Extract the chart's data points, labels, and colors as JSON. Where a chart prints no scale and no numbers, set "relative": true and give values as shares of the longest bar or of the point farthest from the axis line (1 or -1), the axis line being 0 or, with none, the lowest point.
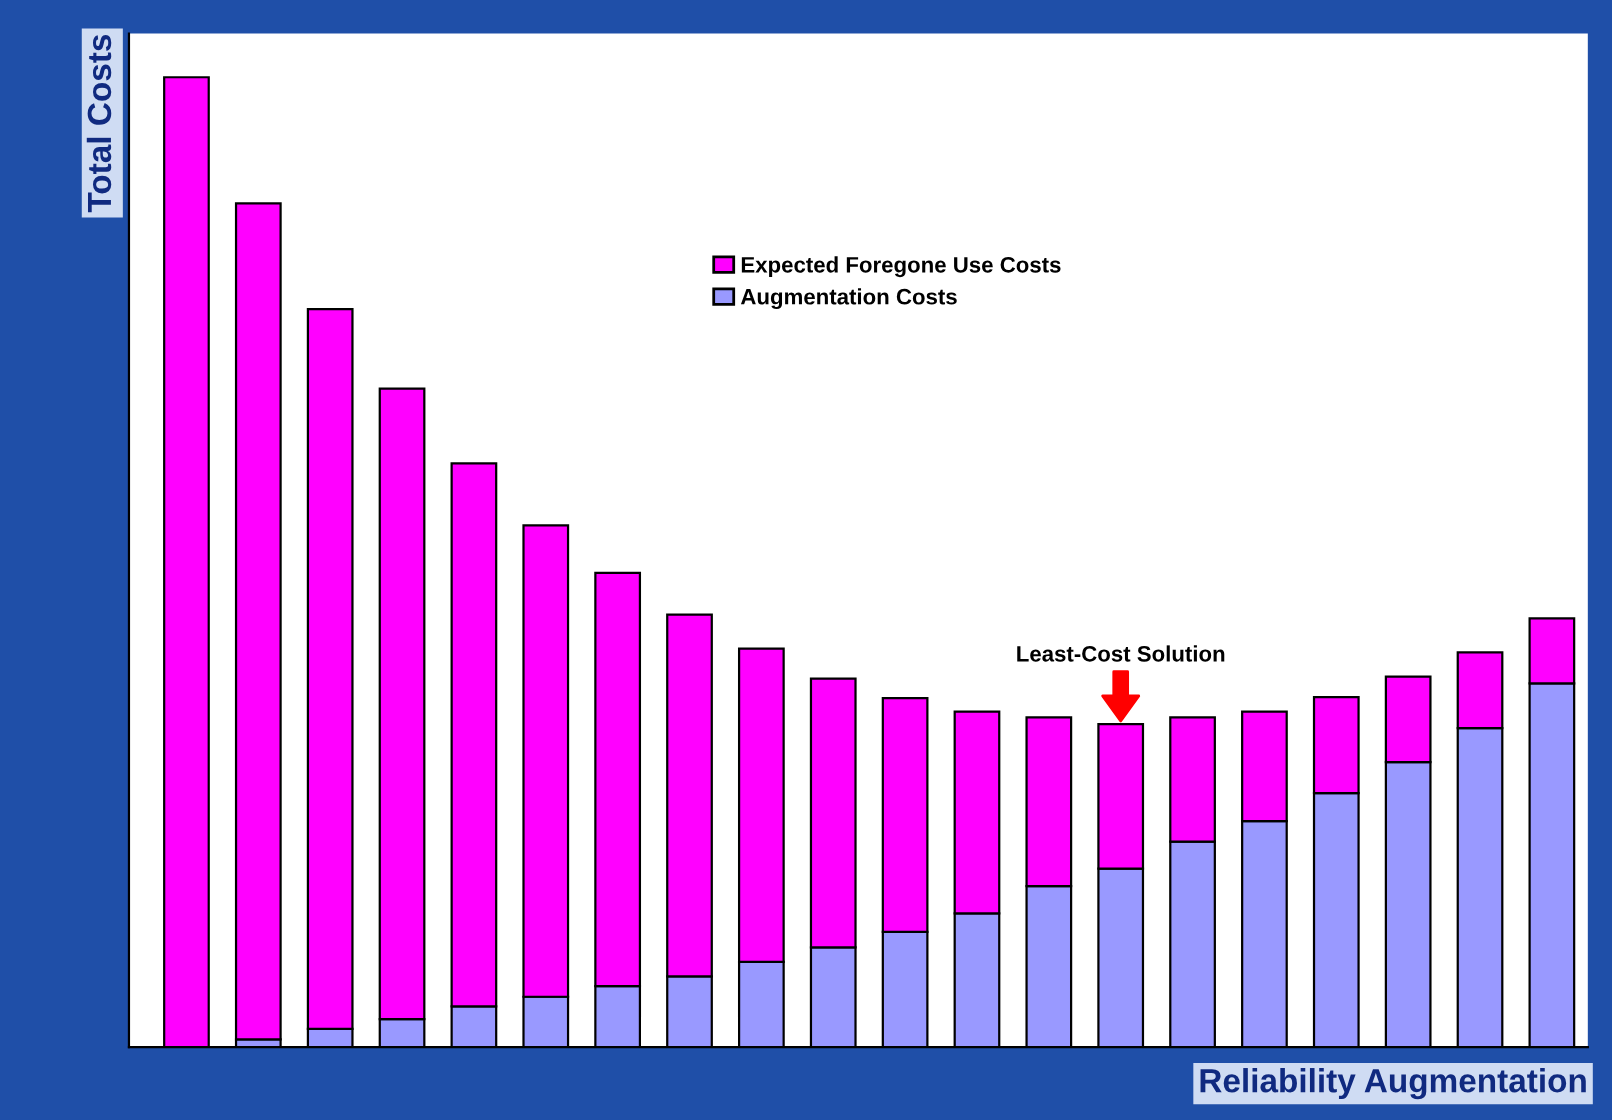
{
  "chart_data": {
    "type": "bar",
    "stacked": true,
    "relative": true,
    "xlabel": "Reliability Augmentation",
    "ylabel": "Total Costs",
    "categories": [
      null,
      null,
      null,
      null,
      null,
      null,
      null,
      null,
      null,
      null,
      null,
      null,
      null,
      null,
      null,
      null,
      null,
      null,
      null,
      null
    ],
    "series": [
      {
        "name": "Augmentation Costs",
        "color": "#9999ff",
        "values": [
          0,
          0.008,
          0.019,
          0.029,
          0.042,
          0.052,
          0.063,
          0.073,
          0.088,
          0.103,
          0.119,
          0.138,
          0.166,
          0.184,
          0.212,
          0.233,
          0.262,
          0.294,
          0.329,
          0.375
        ]
      },
      {
        "name": "Expected Foregone Use Costs",
        "color": "#ff00ff",
        "values": [
          1.0,
          0.862,
          0.742,
          0.65,
          0.56,
          0.486,
          0.426,
          0.373,
          0.323,
          0.277,
          0.241,
          0.208,
          0.174,
          0.149,
          0.128,
          0.113,
          0.099,
          0.088,
          0.078,
          0.067
        ]
      }
    ],
    "annotations": [
      "Least-Cost Solution"
    ],
    "legend": "top",
    "grid": false
  }
}
